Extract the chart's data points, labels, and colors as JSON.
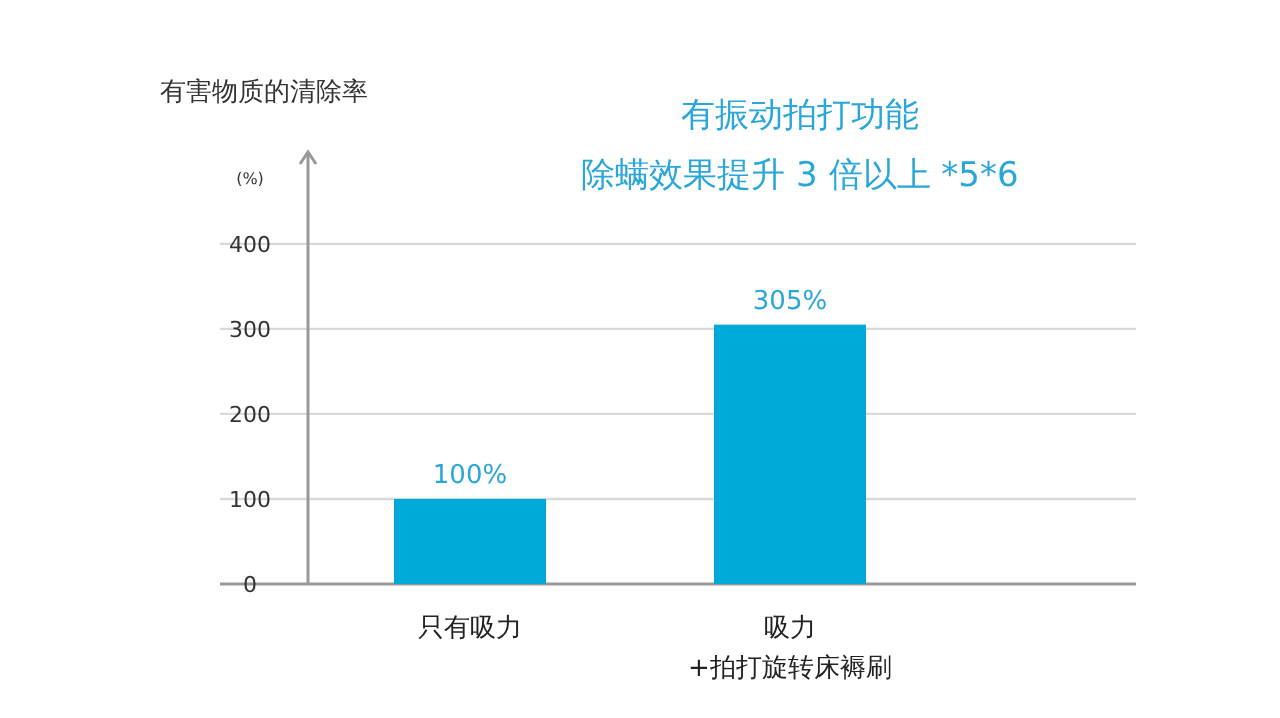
{
  "chart_data": {
    "type": "bar",
    "title": "有害物质的清除率",
    "ylabel": "(%)",
    "annotations": [
      "有振动拍打功能",
      "除螨效果提升 3 倍以上 *5*6"
    ],
    "categories": [
      "只有吸力",
      "吸力\n+拍打旋转床褥刷"
    ],
    "values": [
      100,
      305
    ],
    "color": "#00aad8",
    "value_labels": [
      "100%",
      "305%"
    ],
    "ylim": [
      0,
      508
    ],
    "yticks": [
      0,
      100,
      200,
      300,
      400
    ],
    "grid": "y"
  }
}
